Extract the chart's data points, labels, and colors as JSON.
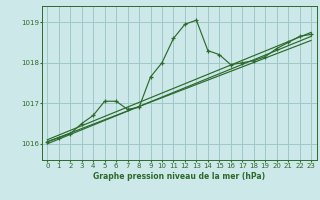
{
  "title": "Graphe pression niveau de la mer (hPa)",
  "bg_color": "#cce8e8",
  "grid_color": "#a0c8c8",
  "line_color": "#2d6a2d",
  "xlim": [
    -0.5,
    23.5
  ],
  "ylim": [
    1015.6,
    1019.4
  ],
  "yticks": [
    1016,
    1017,
    1018,
    1019
  ],
  "xticks": [
    0,
    1,
    2,
    3,
    4,
    5,
    6,
    7,
    8,
    9,
    10,
    11,
    12,
    13,
    14,
    15,
    16,
    17,
    18,
    19,
    20,
    21,
    22,
    23
  ],
  "main_x": [
    0,
    1,
    2,
    3,
    4,
    5,
    6,
    7,
    8,
    9,
    10,
    11,
    12,
    13,
    14,
    15,
    16,
    17,
    18,
    19,
    20,
    21,
    22,
    23
  ],
  "main_y": [
    1016.05,
    1016.15,
    1016.25,
    1016.5,
    1016.7,
    1017.05,
    1017.05,
    1016.85,
    1016.9,
    1017.65,
    1018.0,
    1018.6,
    1018.95,
    1019.05,
    1018.3,
    1018.2,
    1017.95,
    1018.0,
    1018.05,
    1018.15,
    1018.35,
    1018.5,
    1018.65,
    1018.7
  ],
  "line2_x": [
    0,
    23
  ],
  "line2_y": [
    1016.0,
    1018.65
  ],
  "line3_x": [
    0,
    23
  ],
  "line3_y": [
    1016.05,
    1018.55
  ],
  "line4_x": [
    0,
    23
  ],
  "line4_y": [
    1016.1,
    1018.75
  ]
}
